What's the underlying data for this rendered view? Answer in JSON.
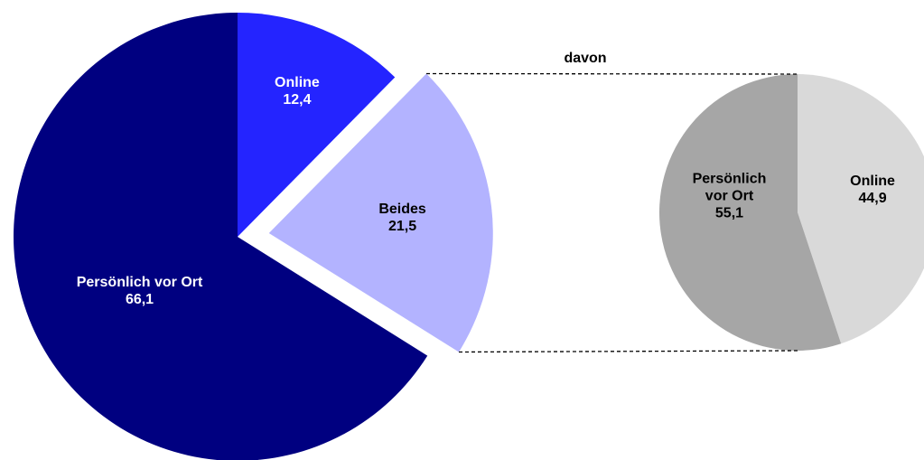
{
  "chart_data": [
    {
      "type": "pie",
      "categories": [
        "Online",
        "Beides",
        "Persönlich vor Ort"
      ],
      "values": [
        12.4,
        21.5,
        66.1
      ],
      "value_labels": [
        "12,4",
        "21,5",
        "66,1"
      ],
      "colors": [
        "#2424ff",
        "#b3b3ff",
        "#000080"
      ],
      "explode": [
        false,
        true,
        false
      ]
    },
    {
      "type": "pie",
      "title": "davon",
      "categories": [
        "Online",
        "Persönlich vor Ort"
      ],
      "values": [
        44.9,
        55.1
      ],
      "value_labels": [
        "44,9",
        "55,1"
      ],
      "colors": [
        "#d9d9d9",
        "#a6a6a6"
      ]
    }
  ]
}
